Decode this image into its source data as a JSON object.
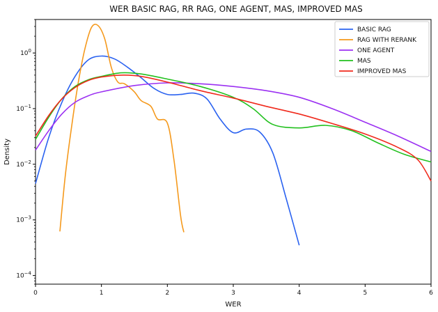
{
  "chart_data": {
    "type": "line",
    "title": "WER BASIC RAG, RR RAG, ONE AGENT, MAS, IMPROVED MAS",
    "xlabel": "WER",
    "ylabel": "Density",
    "xlim": [
      0,
      6
    ],
    "ylim": [
      7e-05,
      4
    ],
    "yscale": "log",
    "grid": false,
    "legend_position": "top-right",
    "x_ticks": [
      {
        "value": 0,
        "label": "0"
      },
      {
        "value": 1,
        "label": "1"
      },
      {
        "value": 2,
        "label": "2"
      },
      {
        "value": 3,
        "label": "3"
      },
      {
        "value": 4,
        "label": "4"
      },
      {
        "value": 5,
        "label": "5"
      },
      {
        "value": 6,
        "label": "6"
      }
    ],
    "y_ticks": [
      {
        "value": 0.0001,
        "base": "10",
        "exp": "−4"
      },
      {
        "value": 0.001,
        "base": "10",
        "exp": "−3"
      },
      {
        "value": 0.01,
        "base": "10",
        "exp": "−2"
      },
      {
        "value": 0.1,
        "base": "10",
        "exp": "−1"
      },
      {
        "value": 1,
        "base": "10",
        "exp": "0"
      }
    ],
    "series": [
      {
        "name": "BASIC RAG",
        "color": "#2a62f0",
        "points": [
          [
            0,
            0.0045
          ],
          [
            0.2,
            0.03
          ],
          [
            0.4,
            0.13
          ],
          [
            0.6,
            0.38
          ],
          [
            0.8,
            0.75
          ],
          [
            1.0,
            0.88
          ],
          [
            1.2,
            0.78
          ],
          [
            1.4,
            0.55
          ],
          [
            1.6,
            0.36
          ],
          [
            1.8,
            0.23
          ],
          [
            2.0,
            0.18
          ],
          [
            2.2,
            0.18
          ],
          [
            2.4,
            0.19
          ],
          [
            2.6,
            0.15
          ],
          [
            2.8,
            0.065
          ],
          [
            3.0,
            0.037
          ],
          [
            3.2,
            0.043
          ],
          [
            3.4,
            0.038
          ],
          [
            3.6,
            0.016
          ],
          [
            3.8,
            0.0025
          ],
          [
            4.0,
            0.00035
          ]
        ]
      },
      {
        "name": "RAG WITH RERANK",
        "color": "#f5991c",
        "points": [
          [
            0.37,
            0.00062
          ],
          [
            0.45,
            0.006
          ],
          [
            0.55,
            0.05
          ],
          [
            0.65,
            0.3
          ],
          [
            0.75,
            1.2
          ],
          [
            0.85,
            2.9
          ],
          [
            0.95,
            3.1
          ],
          [
            1.05,
            1.8
          ],
          [
            1.15,
            0.55
          ],
          [
            1.25,
            0.3
          ],
          [
            1.35,
            0.28
          ],
          [
            1.5,
            0.2
          ],
          [
            1.6,
            0.14
          ],
          [
            1.75,
            0.11
          ],
          [
            1.85,
            0.065
          ],
          [
            2.0,
            0.055
          ],
          [
            2.1,
            0.012
          ],
          [
            2.2,
            0.0012
          ],
          [
            2.25,
            0.0006
          ]
        ]
      },
      {
        "name": "ONE AGENT",
        "color": "#9b30f2",
        "points": [
          [
            0,
            0.018
          ],
          [
            0.2,
            0.04
          ],
          [
            0.4,
            0.08
          ],
          [
            0.6,
            0.13
          ],
          [
            0.8,
            0.17
          ],
          [
            1.0,
            0.2
          ],
          [
            1.5,
            0.26
          ],
          [
            2.0,
            0.29
          ],
          [
            2.5,
            0.28
          ],
          [
            3.0,
            0.25
          ],
          [
            3.5,
            0.21
          ],
          [
            4.0,
            0.16
          ],
          [
            4.5,
            0.1
          ],
          [
            5.0,
            0.057
          ],
          [
            5.5,
            0.032
          ],
          [
            6.0,
            0.017
          ]
        ]
      },
      {
        "name": "MAS",
        "color": "#22c01e",
        "points": [
          [
            0,
            0.028
          ],
          [
            0.2,
            0.07
          ],
          [
            0.4,
            0.15
          ],
          [
            0.6,
            0.25
          ],
          [
            0.8,
            0.33
          ],
          [
            1.0,
            0.38
          ],
          [
            1.3,
            0.44
          ],
          [
            1.6,
            0.42
          ],
          [
            2.0,
            0.34
          ],
          [
            2.5,
            0.25
          ],
          [
            3.0,
            0.16
          ],
          [
            3.3,
            0.1
          ],
          [
            3.6,
            0.052
          ],
          [
            4.0,
            0.045
          ],
          [
            4.4,
            0.05
          ],
          [
            4.8,
            0.04
          ],
          [
            5.2,
            0.024
          ],
          [
            5.6,
            0.015
          ],
          [
            6.0,
            0.011
          ]
        ]
      },
      {
        "name": "IMPROVED MAS",
        "color": "#f02a1c",
        "points": [
          [
            0,
            0.032
          ],
          [
            0.2,
            0.075
          ],
          [
            0.4,
            0.15
          ],
          [
            0.6,
            0.24
          ],
          [
            0.8,
            0.32
          ],
          [
            1.0,
            0.37
          ],
          [
            1.3,
            0.4
          ],
          [
            1.6,
            0.38
          ],
          [
            2.0,
            0.3
          ],
          [
            2.5,
            0.21
          ],
          [
            3.0,
            0.155
          ],
          [
            3.5,
            0.11
          ],
          [
            4.0,
            0.08
          ],
          [
            4.5,
            0.054
          ],
          [
            5.0,
            0.035
          ],
          [
            5.5,
            0.02
          ],
          [
            5.8,
            0.012
          ],
          [
            6.0,
            0.005
          ]
        ]
      }
    ]
  }
}
